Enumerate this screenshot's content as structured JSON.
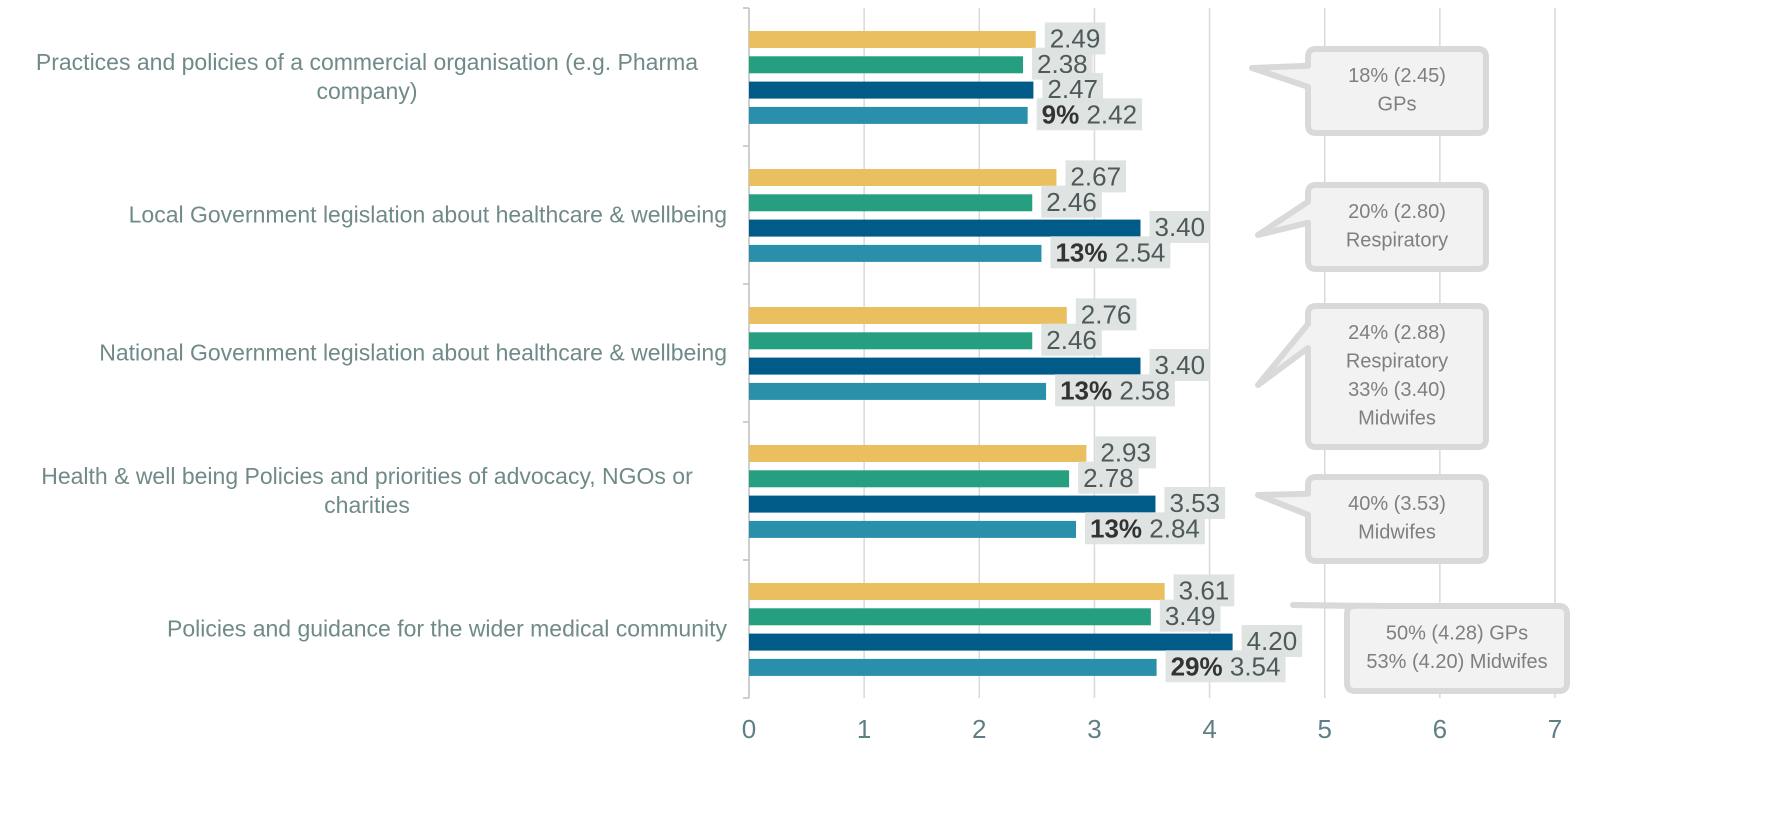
{
  "chart_data": {
    "type": "barh",
    "categories": [
      "Practices and policies of a commercial organisation (e.g. Pharma company)",
      "Local Government legislation about healthcare & wellbeing",
      "National Government legislation about healthcare & wellbeing",
      "Health & well being Policies and priorities of advocacy, NGOs or charities",
      "Policies and guidance for the wider medical community"
    ],
    "series": [
      {
        "color": "#E9BF5F",
        "values": [
          2.49,
          2.67,
          2.76,
          2.93,
          3.61
        ],
        "value_labels": [
          "2.49",
          "2.67",
          "2.76",
          "2.93",
          "3.61"
        ]
      },
      {
        "color": "#269E80",
        "values": [
          2.38,
          2.46,
          2.46,
          2.78,
          3.49
        ],
        "value_labels": [
          "2.38",
          "2.46",
          "2.46",
          "2.78",
          "3.49"
        ]
      },
      {
        "color": "#005B88",
        "values": [
          2.47,
          3.4,
          3.4,
          3.53,
          4.2
        ],
        "value_labels": [
          "2.47",
          "3.40",
          "3.40",
          "3.53",
          "4.20"
        ]
      },
      {
        "color": "#2A8FAA",
        "values": [
          2.42,
          2.54,
          2.58,
          2.84,
          3.54
        ],
        "value_labels": [
          "2.42",
          "2.54",
          "2.58",
          "2.84",
          "3.54"
        ],
        "percent_labels": [
          "9%",
          "13%",
          "13%",
          "13%",
          "29%"
        ]
      }
    ],
    "callouts": [
      [
        "18% (2.45)",
        "GPs"
      ],
      [
        "20% (2.80)",
        "Respiratory"
      ],
      [
        "24% (2.88)",
        "Respiratory",
        "33% (3.40)",
        "Midwifes"
      ],
      [
        "40% (3.53)",
        "Midwifes"
      ],
      [
        "50% (4.28) GPs",
        "53% (4.20) Midwifes"
      ]
    ],
    "xlim": [
      0,
      7
    ],
    "xticks": [
      0,
      1,
      2,
      3,
      4,
      5,
      6,
      7
    ],
    "grid": true
  }
}
